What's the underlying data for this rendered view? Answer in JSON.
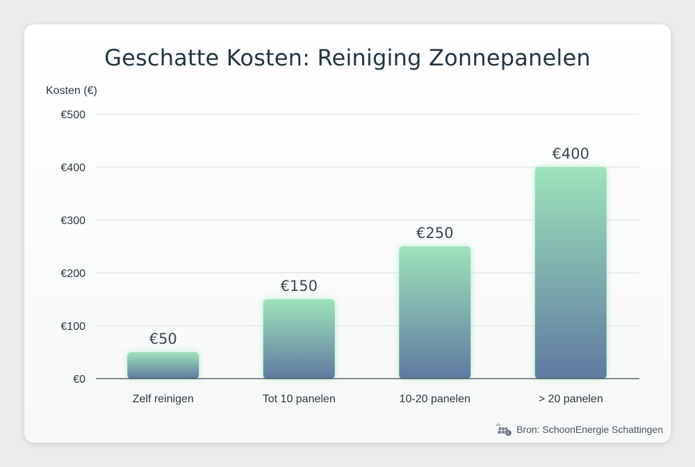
{
  "title": "Geschatte Kosten: Reiniging Zonnepanelen",
  "source": {
    "text": "Bron: SchoonEnergie Schattingen",
    "icon": "solar-panel-euro-icon"
  },
  "colors": {
    "bar_top": "#9ee3bb",
    "bar_bottom": "#5f7aa0",
    "grid": "#d8dcdf",
    "axis": "#3c4a52"
  },
  "chart_data": {
    "type": "bar",
    "title": "Geschatte Kosten: Reiniging Zonnepanelen",
    "ylabel": "Kosten (€)",
    "xlabel": "",
    "categories": [
      "Zelf reinigen",
      "Tot 10 panelen",
      "10-20 panelen",
      "> 20 panelen"
    ],
    "values": [
      50,
      150,
      250,
      400
    ],
    "value_labels": [
      "€50",
      "€150",
      "€250",
      "€400"
    ],
    "ylim": [
      0,
      500
    ],
    "yticks": [
      0,
      100,
      200,
      300,
      400,
      500
    ],
    "ytick_labels": [
      "€0",
      "€100",
      "€200",
      "€300",
      "€400",
      "€500"
    ],
    "grid": true,
    "legend": "none"
  }
}
